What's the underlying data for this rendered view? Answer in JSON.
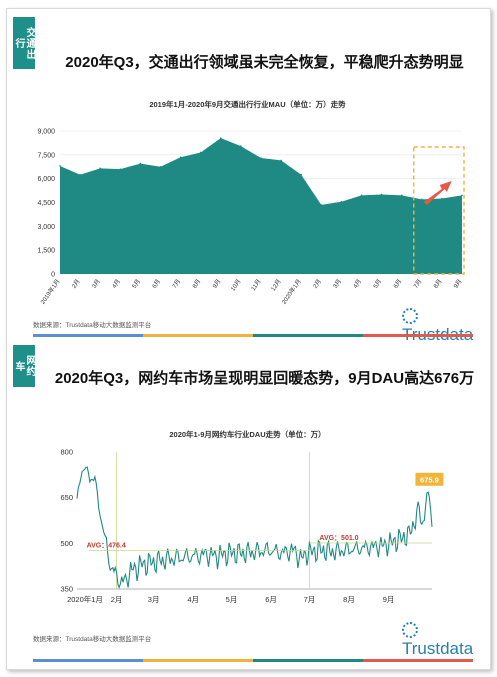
{
  "panel1": {
    "tag": "交通出行",
    "headline": "2020年Q3，交通出行领域虽未完全恢复，平稳爬升态势明显",
    "source": "数据来源：Trustdata移动大数据监测平台",
    "logo": "Trustdata",
    "chart_data": {
      "type": "area",
      "title": "2019年1月-2020年9月交通出行行业MAU（单位：万）走势",
      "categories": [
        "2019年1月",
        "2月",
        "3月",
        "4月",
        "5月",
        "6月",
        "7月",
        "8月",
        "9月",
        "10月",
        "11月",
        "12月",
        "2020年1月",
        "2月",
        "3月",
        "4月",
        "5月",
        "6月",
        "7月",
        "8月",
        "9月"
      ],
      "values": [
        6800,
        6250,
        6650,
        6600,
        6950,
        6750,
        7350,
        7650,
        8550,
        8050,
        7300,
        7150,
        6250,
        4350,
        4550,
        4950,
        5000,
        4950,
        4700,
        4750,
        4950
      ],
      "ylim": [
        0,
        9000
      ],
      "yticks": [
        "0",
        "1,500",
        "3,000",
        "4,500",
        "6,000",
        "7,500",
        "9,000"
      ],
      "color": "#1f8a84",
      "highlight_color": "#f0b23c",
      "arrow_color": "#e8574a"
    }
  },
  "panel2": {
    "tag": "网约车",
    "headline": "2020年Q3，网约车市场呈现明显回暖态势，9月DAU高达676万",
    "source": "数据来源：Trustdata移动大数据监测平台",
    "logo": "Trustdata",
    "chart_data": {
      "type": "line",
      "title": "2020年1-9月网约车行业DAU走势（单位：万）",
      "xlabels": [
        "2020年1月",
        "2月",
        "3月",
        "4月",
        "5月",
        "6月",
        "7月",
        "8月",
        "9月"
      ],
      "ylim": [
        350,
        800
      ],
      "yticks": [
        "350",
        "500",
        "650",
        "800"
      ],
      "avg1_label": "AVG：476.4",
      "avg2_label": "AVG：501.0",
      "avg1": 476.4,
      "avg2": 501.0,
      "peak_label": "675.9",
      "peak": 675.9,
      "color": "#1f8a84",
      "avg_color": "#c9d98a",
      "label_color": "#c0392b",
      "peak_color": "#f3b43a",
      "keypoints": [
        [
          0,
          640
        ],
        [
          3,
          720
        ],
        [
          6,
          760
        ],
        [
          10,
          710
        ],
        [
          14,
          720
        ],
        [
          17,
          620
        ],
        [
          20,
          560
        ],
        [
          24,
          470
        ],
        [
          27,
          420
        ],
        [
          30,
          400
        ],
        [
          34,
          370
        ],
        [
          38,
          380
        ],
        [
          42,
          410
        ],
        [
          50,
          430
        ],
        [
          60,
          440
        ],
        [
          70,
          450
        ],
        [
          80,
          455
        ],
        [
          90,
          460
        ],
        [
          100,
          465
        ],
        [
          110,
          460
        ],
        [
          120,
          470
        ],
        [
          130,
          470
        ],
        [
          140,
          475
        ],
        [
          150,
          480
        ],
        [
          160,
          470
        ],
        [
          170,
          480
        ],
        [
          175,
          450
        ],
        [
          180,
          470
        ],
        [
          190,
          480
        ],
        [
          200,
          475
        ],
        [
          210,
          480
        ],
        [
          220,
          485
        ],
        [
          230,
          490
        ],
        [
          240,
          495
        ],
        [
          250,
          510
        ],
        [
          255,
          520
        ],
        [
          260,
          530
        ],
        [
          265,
          580
        ],
        [
          268,
          620
        ],
        [
          270,
          560
        ],
        [
          272,
          600
        ],
        [
          274,
          640
        ],
        [
          276,
          670
        ],
        [
          278,
          560
        ]
      ]
    }
  }
}
